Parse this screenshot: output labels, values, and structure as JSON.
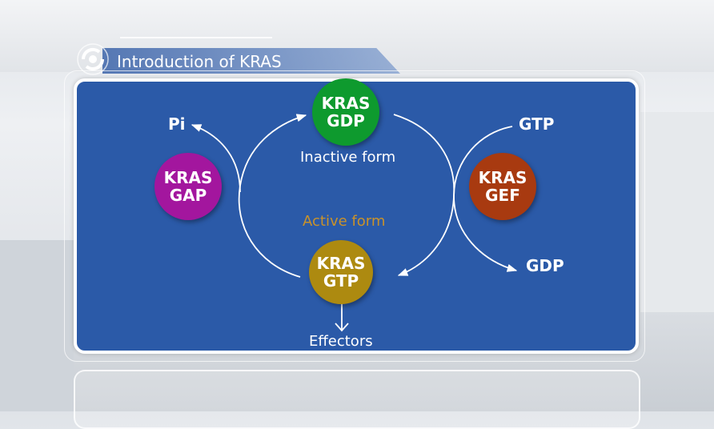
{
  "header": {
    "title": "Introduction of KRAS",
    "icon": "target-ring-icon"
  },
  "diagram": {
    "nodes": [
      {
        "id": "gdp",
        "line1": "KRAS",
        "line2": "GDP",
        "color": "#0e9a2e"
      },
      {
        "id": "gtp",
        "line1": "KRAS",
        "line2": "GTP",
        "color": "#ad8a10"
      },
      {
        "id": "gap",
        "line1": "KRAS",
        "line2": "GAP",
        "color": "#a3169e"
      },
      {
        "id": "gef",
        "line1": "KRAS",
        "line2": "GEF",
        "color": "#a83a10"
      }
    ],
    "labels": {
      "inactive": "Inactive form",
      "active": "Active form",
      "pi": "Pi",
      "gtp": "GTP",
      "gdp": "GDP",
      "effectors": "Effectors"
    },
    "active_color": "#c9922a",
    "panel_color": "#2b5aa8"
  }
}
